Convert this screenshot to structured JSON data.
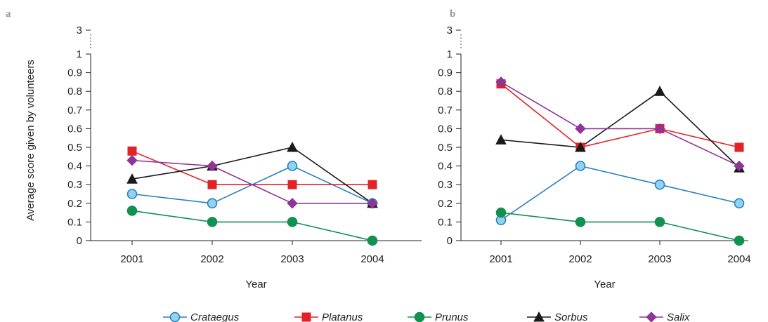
{
  "chart_data": [
    {
      "type": "line",
      "panel_label": "a",
      "xlabel": "Year",
      "ylabel": "Average score given by volunteers",
      "categories": [
        "2001",
        "2002",
        "2003",
        "2004"
      ],
      "y_ticks": [
        "0",
        "0.1",
        "0.2",
        "0.3",
        "0.4",
        "0.5",
        "0.6",
        "0.7",
        "0.8",
        "0.9",
        "1"
      ],
      "y_break_tick": "3",
      "ylim": [
        0,
        1
      ],
      "series": [
        {
          "name": "Crataegus",
          "values": [
            0.25,
            0.2,
            0.4,
            0.2
          ]
        },
        {
          "name": "Platanus",
          "values": [
            0.48,
            0.3,
            0.3,
            0.3
          ]
        },
        {
          "name": "Prunus",
          "values": [
            0.16,
            0.1,
            0.1,
            0.0
          ]
        },
        {
          "name": "Sorbus",
          "values": [
            0.33,
            0.4,
            0.5,
            0.2
          ]
        },
        {
          "name": "Salix",
          "values": [
            0.43,
            0.4,
            0.2,
            0.2
          ]
        }
      ]
    },
    {
      "type": "line",
      "panel_label": "b",
      "xlabel": "Year",
      "ylabel": "",
      "categories": [
        "2001",
        "2002",
        "2003",
        "2004"
      ],
      "y_ticks": [
        "0",
        "0.1",
        "0.2",
        "0.3",
        "0.4",
        "0.5",
        "0.6",
        "0.7",
        "0.8",
        "0.9",
        "1"
      ],
      "y_break_tick": "3",
      "ylim": [
        0,
        1
      ],
      "series": [
        {
          "name": "Crataegus",
          "values": [
            0.11,
            0.4,
            0.3,
            0.2
          ]
        },
        {
          "name": "Platanus",
          "values": [
            0.84,
            0.5,
            0.6,
            0.5
          ]
        },
        {
          "name": "Prunus",
          "values": [
            0.15,
            0.1,
            0.1,
            0.0
          ]
        },
        {
          "name": "Sorbus",
          "values": [
            0.54,
            0.5,
            0.8,
            0.39
          ]
        },
        {
          "name": "Salix",
          "values": [
            0.85,
            0.6,
            0.6,
            0.4
          ]
        }
      ]
    }
  ],
  "legend": {
    "placement": "bottom",
    "items": [
      {
        "name": "Crataegus",
        "marker": "circle",
        "color": "#2a7fc1",
        "fill": "#8fd3f0"
      },
      {
        "name": "Platanus",
        "marker": "square",
        "color": "#e32228",
        "fill": "#e32228"
      },
      {
        "name": "Prunus",
        "marker": "circle",
        "color": "#119050",
        "fill": "#119050"
      },
      {
        "name": "Sorbus",
        "marker": "triangle",
        "color": "#1a1a1a",
        "fill": "#1a1a1a"
      },
      {
        "name": "Salix",
        "marker": "diamond",
        "color": "#8e3596",
        "fill": "#8e3596"
      }
    ]
  }
}
